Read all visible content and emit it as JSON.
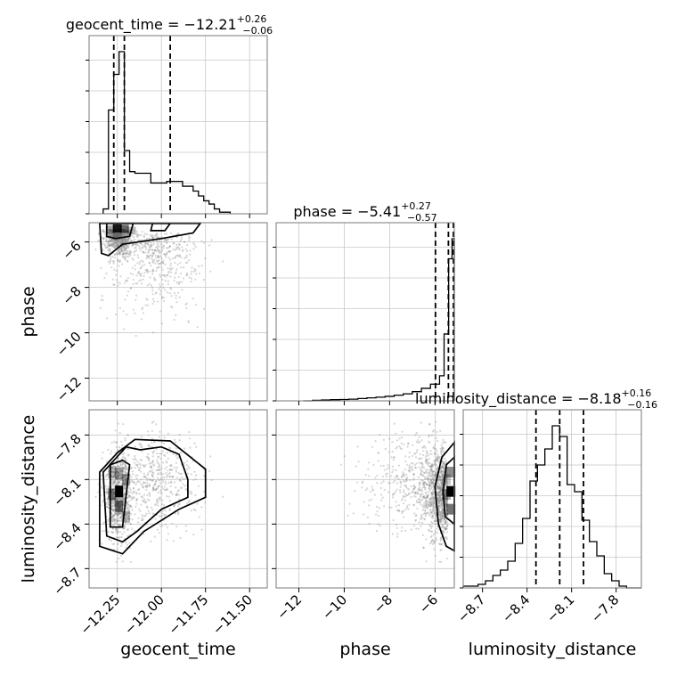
{
  "chart_data": {
    "type": "corner",
    "parameters": [
      {
        "key": "geocent_time",
        "label": "geocent_time",
        "title_main": "geocent_time = −12.21",
        "title_sup": "+0.26",
        "title_sub": "−0.06",
        "range": [
          -12.41,
          -11.4
        ],
        "ticks": [
          -12.25,
          -12.0,
          -11.75,
          -11.5
        ],
        "tick_labels": [
          "−12.25",
          "−12.00",
          "−11.75",
          "−11.50"
        ],
        "quantiles": [
          -12.27,
          -12.21,
          -11.95
        ]
      },
      {
        "key": "phase",
        "label": "phase",
        "title_main": "phase = −5.41",
        "title_sup": "+0.27",
        "title_sub": "−0.57",
        "range": [
          -13.0,
          -5.15
        ],
        "ticks": [
          -12,
          -10,
          -8,
          -6
        ],
        "tick_labels": [
          "−12",
          "−10",
          "−8",
          "−6"
        ],
        "quantiles": [
          -5.98,
          -5.41,
          -5.14
        ]
      },
      {
        "key": "luminosity_distance",
        "label": "luminosity_distance",
        "title_main": "luminosity_distance = −8.18",
        "title_sup": "+0.16",
        "title_sub": "−0.16",
        "range": [
          -8.83,
          -7.63
        ],
        "ticks": [
          -8.7,
          -8.4,
          -8.1,
          -7.8
        ],
        "tick_labels": [
          "−8.7",
          "−8.4",
          "−8.1",
          "−7.8"
        ],
        "quantiles": [
          -8.34,
          -8.18,
          -8.02
        ]
      }
    ],
    "histograms": {
      "geocent_time": {
        "bin_edges": [
          -12.33,
          -12.3,
          -12.27,
          -12.24,
          -12.21,
          -12.18,
          -12.15,
          -12.12,
          -12.09,
          -12.06,
          -12.03,
          -12.0,
          -11.97,
          -11.94,
          -11.91,
          -11.88,
          -11.85,
          -11.82,
          -11.79,
          -11.76,
          -11.73,
          -11.7,
          -11.67,
          -11.64,
          -11.61
        ],
        "counts": [
          0.03,
          0.64,
          0.86,
          1.0,
          0.39,
          0.26,
          0.25,
          0.25,
          0.25,
          0.19,
          0.19,
          0.19,
          0.2,
          0.2,
          0.2,
          0.17,
          0.17,
          0.14,
          0.11,
          0.08,
          0.06,
          0.03,
          0.01,
          0.01
        ]
      },
      "phase": {
        "bin_edges": [
          -11.8,
          -11.4,
          -11.0,
          -10.6,
          -10.2,
          -9.8,
          -9.4,
          -9.0,
          -8.6,
          -8.2,
          -7.8,
          -7.4,
          -7.0,
          -6.6,
          -6.2,
          -5.8,
          -5.6,
          -5.4,
          -5.25,
          -5.15
        ],
        "counts": [
          0.0,
          0.003,
          0.005,
          0.007,
          0.008,
          0.01,
          0.014,
          0.018,
          0.022,
          0.027,
          0.034,
          0.042,
          0.055,
          0.075,
          0.1,
          0.15,
          0.4,
          0.85,
          0.97
        ]
      },
      "luminosity_distance": {
        "bin_edges": [
          -8.83,
          -8.78,
          -8.73,
          -8.68,
          -8.63,
          -8.58,
          -8.53,
          -8.48,
          -8.43,
          -8.38,
          -8.33,
          -8.28,
          -8.23,
          -8.18,
          -8.13,
          -8.08,
          -8.03,
          -7.98,
          -7.93,
          -7.88,
          -7.83,
          -7.78,
          -7.73,
          -7.68,
          -7.63
        ],
        "counts": [
          0.01,
          0.01,
          0.02,
          0.04,
          0.07,
          0.1,
          0.15,
          0.25,
          0.39,
          0.6,
          0.69,
          0.78,
          0.91,
          0.85,
          0.58,
          0.54,
          0.38,
          0.26,
          0.18,
          0.08,
          0.04,
          0.01,
          0.0,
          0.0
        ]
      }
    },
    "scatter_style": {
      "point_color": "#8a8a8a",
      "contour_color": "#000000",
      "density_color": "#000000"
    },
    "grid": true
  }
}
